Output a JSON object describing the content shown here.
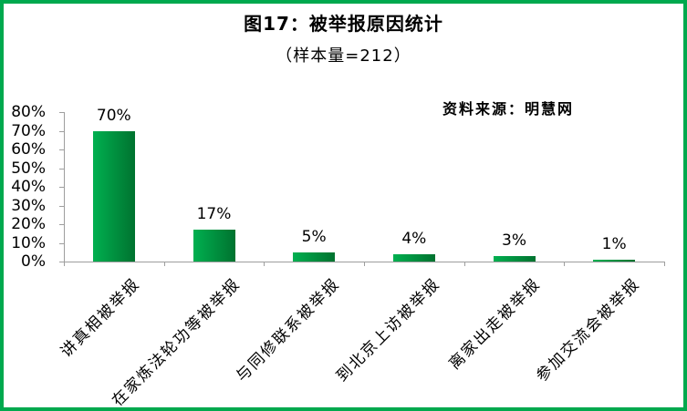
{
  "frame": {
    "border_color": "#00A94E",
    "background": "#ffffff"
  },
  "source_note": "资料来源：明慧网",
  "chart_data": {
    "type": "bar",
    "title": "图17：被举报原因统计",
    "subtitle": "（样本量=212）",
    "sample_size": 212,
    "categories": [
      "讲真相被举报",
      "在家炼法轮功等被举报",
      "与同修联系被举报",
      "到北京上访被举报",
      "离家出走被举报",
      "参加交流会被举报"
    ],
    "values": [
      70,
      17,
      5,
      4,
      3,
      1
    ],
    "value_labels": [
      "70%",
      "17%",
      "5%",
      "4%",
      "3%",
      "1%"
    ],
    "xlabel": "",
    "ylabel": "",
    "ylim": [
      0,
      80
    ],
    "y_tick_step": 10,
    "y_tick_labels": [
      "0%",
      "10%",
      "20%",
      "30%",
      "40%",
      "50%",
      "60%",
      "70%",
      "80%"
    ],
    "grid": false,
    "legend": "none",
    "category_label_rotation_deg": 45,
    "bar_color_gradient": [
      "#00B050",
      "#00722F"
    ],
    "axis_color": "#9E9E9E",
    "text_color": "#000000"
  }
}
